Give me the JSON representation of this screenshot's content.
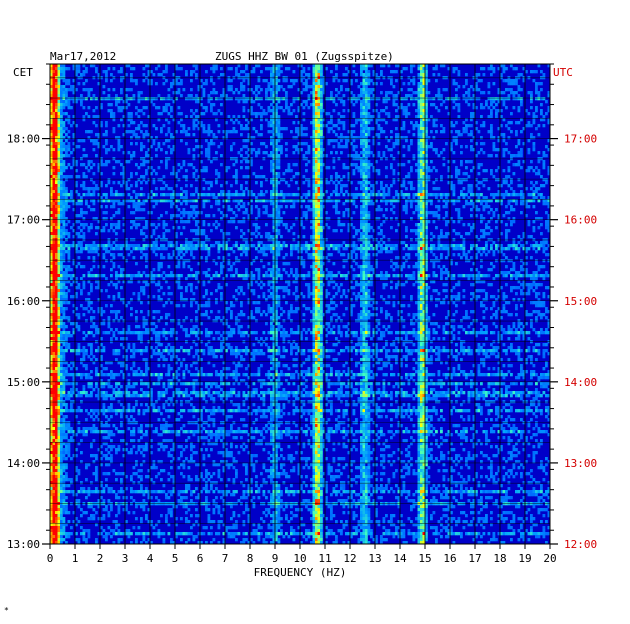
{
  "header": {
    "date": "Mar17,2012",
    "station": "ZUGS HHZ BW 01 (Zugsspitze)",
    "left_zone": "CET",
    "right_zone": "UTC"
  },
  "footnote": "*",
  "colors": {
    "background_low": "#0000c8",
    "mid": "#00a0ff",
    "high": "#ffff00",
    "peak": "#ff0000",
    "grid": "#000000",
    "utc_label": "#d40000"
  },
  "chart_data": {
    "type": "heatmap",
    "title": "ZUGS HHZ BW 01 (Zugsspitze)",
    "xlabel": "FREQUENCY (HZ)",
    "xlim": [
      0,
      20
    ],
    "x_ticks": [
      "0",
      "1",
      "2",
      "3",
      "4",
      "5",
      "6",
      "7",
      "8",
      "9",
      "10",
      "11",
      "12",
      "13",
      "14",
      "15",
      "16",
      "17",
      "18",
      "19",
      "20"
    ],
    "y_left_ticks": [
      {
        "label": "18:00",
        "hours_below_top": 0.92
      },
      {
        "label": "17:00",
        "hours_below_top": 1.92
      },
      {
        "label": "16:00",
        "hours_below_top": 2.92
      },
      {
        "label": "15:00",
        "hours_below_top": 3.92
      },
      {
        "label": "14:00",
        "hours_below_top": 4.92
      },
      {
        "label": "13:00",
        "hours_below_top": 5.92
      }
    ],
    "y_right_ticks": [
      {
        "label": "17:00",
        "hours_below_top": 0.92
      },
      {
        "label": "16:00",
        "hours_below_top": 1.92
      },
      {
        "label": "15:00",
        "hours_below_top": 2.92
      },
      {
        "label": "14:00",
        "hours_below_top": 3.92
      },
      {
        "label": "13:00",
        "hours_below_top": 4.92
      },
      {
        "label": "12:00",
        "hours_below_top": 5.92
      }
    ],
    "time_span_hours": 5.92,
    "grid": true,
    "colorscale": [
      "#0000c8",
      "#0040ff",
      "#00a0ff",
      "#40ffc0",
      "#ffff00",
      "#ff0000"
    ],
    "persistent_bands_hz": [
      {
        "freq": 0.2,
        "strength": 0.9
      },
      {
        "freq": 10.7,
        "strength": 0.75
      },
      {
        "freq": 14.9,
        "strength": 0.6
      },
      {
        "freq": 12.6,
        "strength": 0.35
      },
      {
        "freq": 9.0,
        "strength": 0.25
      }
    ]
  }
}
